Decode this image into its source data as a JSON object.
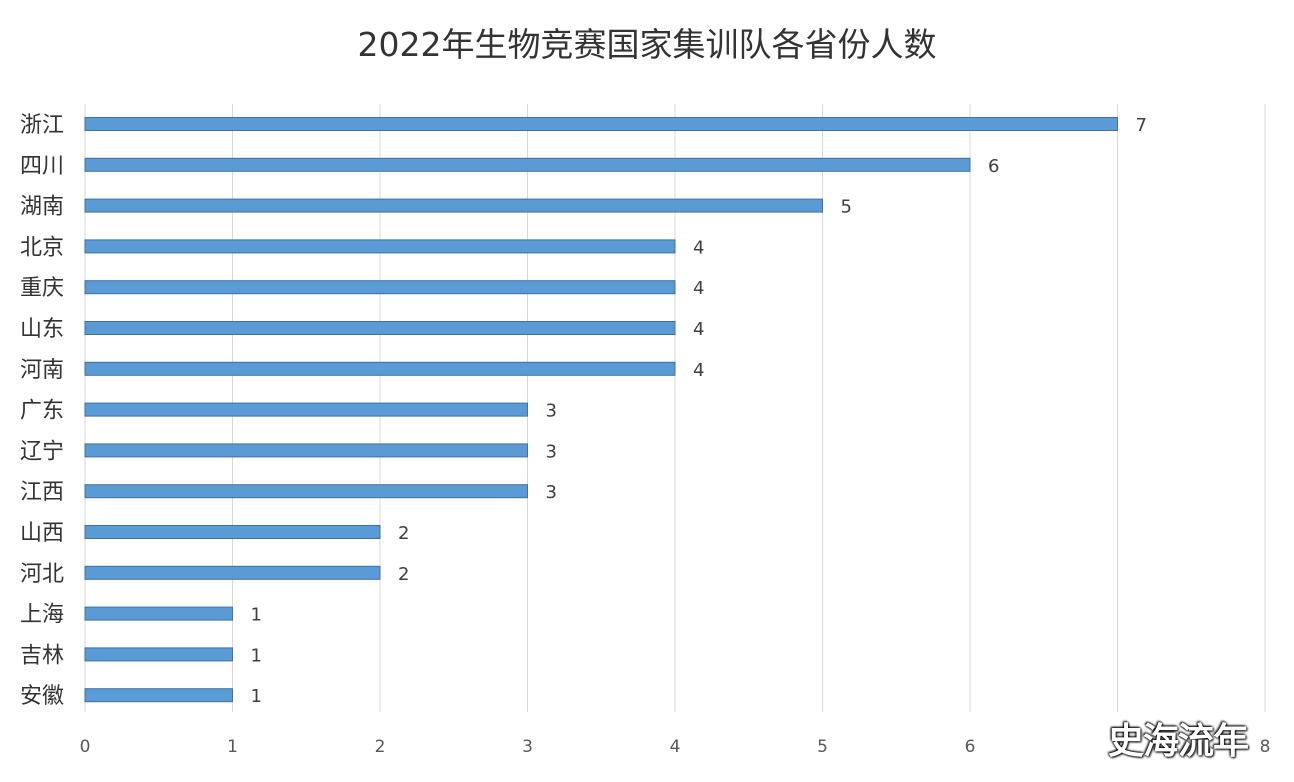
{
  "chart_data": {
    "type": "bar",
    "orientation": "horizontal",
    "title": "2022年生物竞赛国家集训队各省份人数",
    "categories": [
      "浙江",
      "四川",
      "湖南",
      "北京",
      "重庆",
      "山东",
      "河南",
      "广东",
      "辽宁",
      "江西",
      "山西",
      "河北",
      "上海",
      "吉林",
      "安徽"
    ],
    "values": [
      7,
      6,
      5,
      4,
      4,
      4,
      4,
      3,
      3,
      3,
      2,
      2,
      1,
      1,
      1
    ],
    "xlim": [
      0,
      8
    ],
    "xticks": [
      "0",
      "1",
      "2",
      "3",
      "4",
      "5",
      "6",
      "7",
      "8"
    ],
    "grid": true,
    "data_labels": true,
    "bar_color": "#5b9bd5"
  },
  "watermark": "史海流年"
}
